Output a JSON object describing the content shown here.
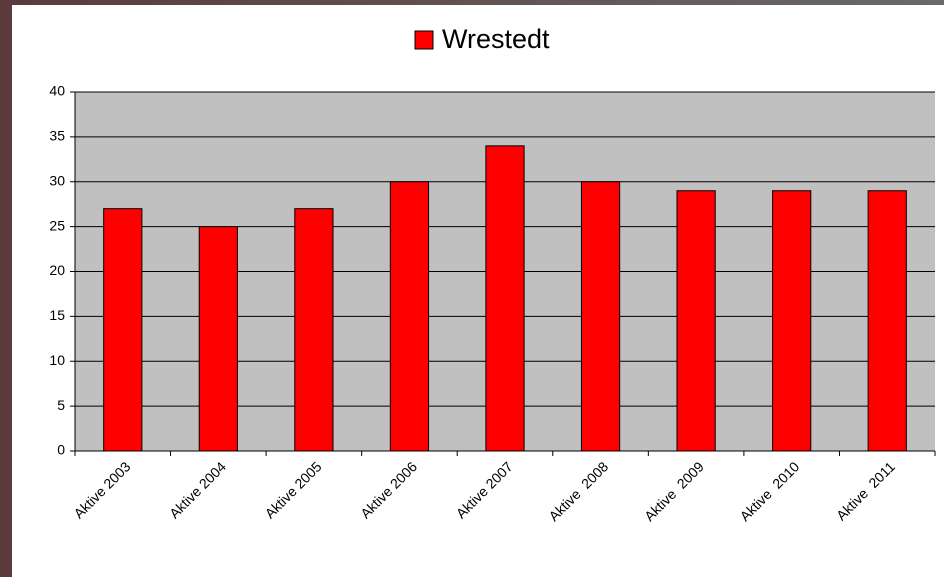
{
  "chart_data": {
    "type": "bar",
    "categories": [
      "Aktive 2003",
      "Aktive 2004",
      "Aktive 2005",
      "Aktive 2006",
      "Aktive 2007",
      "Aktive  2008",
      "Aktive  2009",
      "Aktive  2010",
      "Aktive  2011"
    ],
    "series": [
      {
        "name": "Wrestedt",
        "color": "#ff0000",
        "values": [
          27,
          25,
          27,
          30,
          34,
          30,
          29,
          29,
          29
        ]
      }
    ],
    "ylim": [
      0,
      40
    ],
    "yticks": [
      0,
      5,
      10,
      15,
      20,
      25,
      30,
      35,
      40
    ],
    "grid": true,
    "legend": "top"
  }
}
